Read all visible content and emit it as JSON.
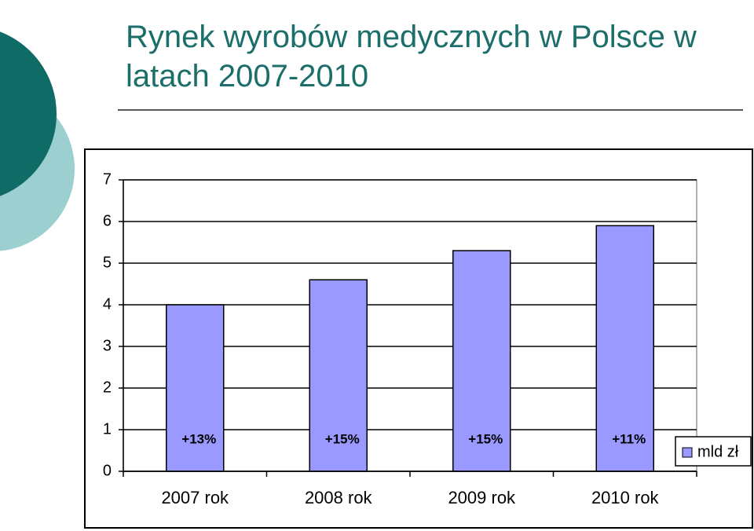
{
  "chart_data": {
    "type": "bar",
    "title": "Rynek wyrobów medycznych w Polsce w latach 2007-2010",
    "categories": [
      "2007 rok",
      "2008 rok",
      "2009 rok",
      "2010 rok"
    ],
    "series": [
      {
        "name": "mld zł",
        "color": "#9999ff",
        "values": [
          4.0,
          4.6,
          5.3,
          5.9
        ]
      }
    ],
    "annotations": [
      "+13%",
      "+15%",
      "+15%",
      "+11%"
    ],
    "ylim": [
      0,
      7
    ],
    "yticks": [
      0,
      1,
      2,
      3,
      4,
      5,
      6,
      7
    ],
    "grid": true,
    "legend": "right"
  }
}
